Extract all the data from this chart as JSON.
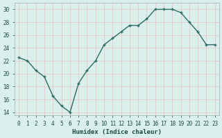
{
  "x": [
    0,
    1,
    2,
    3,
    4,
    5,
    6,
    7,
    8,
    9,
    10,
    11,
    12,
    13,
    14,
    15,
    16,
    17,
    18,
    19,
    20,
    21,
    22,
    23
  ],
  "y": [
    22.5,
    22.0,
    20.5,
    19.5,
    16.5,
    15.0,
    14.0,
    18.5,
    20.5,
    22.0,
    24.5,
    25.5,
    26.5,
    27.5,
    27.5,
    28.5,
    30.0,
    30.0,
    30.0,
    29.5,
    28.0,
    26.5,
    24.5,
    24.5
  ],
  "xlabel": "Humidex (Indice chaleur)",
  "ylabel": "",
  "xlim": [
    -0.5,
    23.5
  ],
  "ylim": [
    13.5,
    31
  ],
  "yticks": [
    14,
    16,
    18,
    20,
    22,
    24,
    26,
    28,
    30
  ],
  "xtick_labels": [
    "0",
    "1",
    "2",
    "3",
    "4",
    "5",
    "6",
    "7",
    "8",
    "9",
    "10",
    "11",
    "12",
    "13",
    "14",
    "15",
    "16",
    "17",
    "18",
    "19",
    "20",
    "21",
    "22",
    "23"
  ],
  "line_color": "#2e6b5e",
  "marker": "+",
  "bg_color": "#d9f0ed",
  "grid_color": "#e8c8c8",
  "font_color": "#1a4a3a",
  "spine_color": "#aaaaaa"
}
